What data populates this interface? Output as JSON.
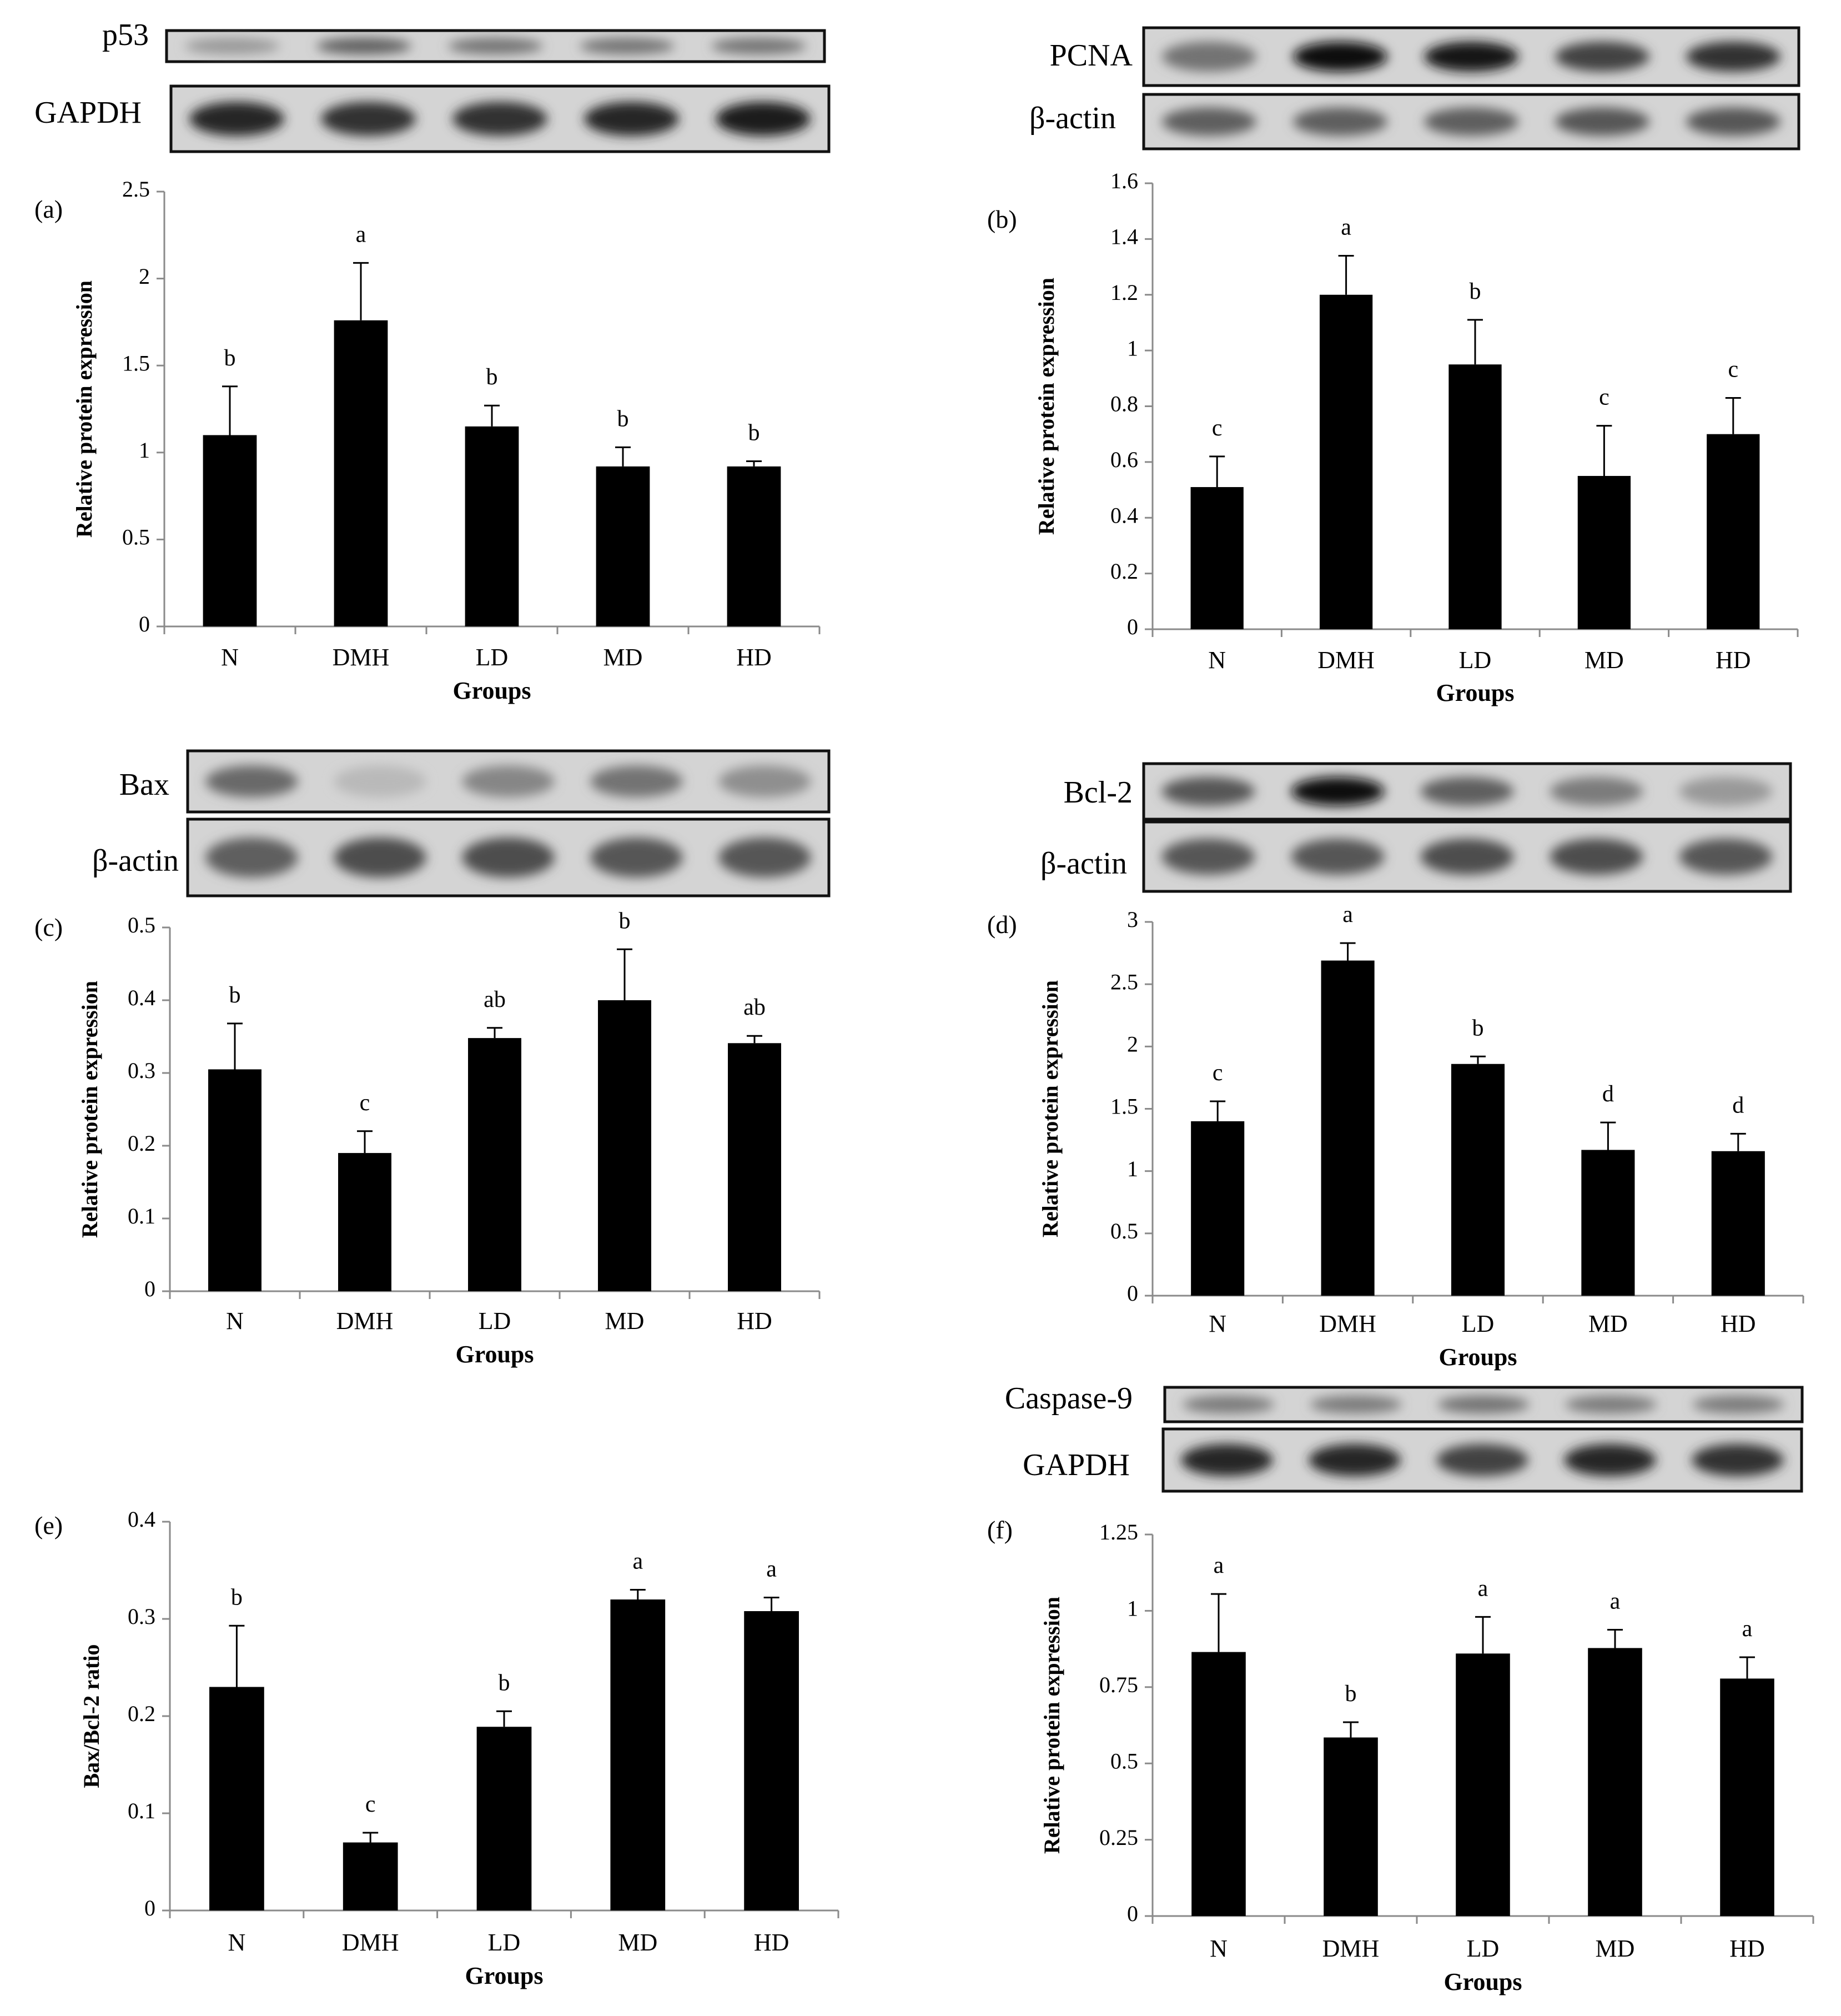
{
  "colors": {
    "bar": "#000000",
    "axis": "#8a8a8a",
    "blot_bg": "#d4d4d4"
  },
  "chart_data": [
    {
      "type": "bar",
      "panel": "(a)",
      "categories": [
        "N",
        "DMH",
        "LD",
        "MD",
        "HD"
      ],
      "values": [
        1.1,
        1.76,
        1.15,
        0.92,
        0.92
      ],
      "errors": [
        0.28,
        0.33,
        0.12,
        0.11,
        0.03
      ],
      "sig_letters": [
        "b",
        "a",
        "b",
        "b",
        "b"
      ],
      "ylim": [
        0,
        2.5
      ],
      "yticks": [
        "0",
        "0.5",
        "1",
        "1.5",
        "2",
        "2.5"
      ],
      "xlabel": "Groups",
      "ylabel": "Relative protein expression",
      "grid": false,
      "blots": [
        {
          "label": "p53",
          "bands": [
            0.25,
            0.55,
            0.45,
            0.45,
            0.45
          ]
        },
        {
          "label": "GAPDH",
          "bands": [
            0.85,
            0.8,
            0.8,
            0.85,
            0.9
          ]
        }
      ]
    },
    {
      "type": "bar",
      "panel": "(b)",
      "categories": [
        "N",
        "DMH",
        "LD",
        "MD",
        "HD"
      ],
      "values": [
        0.51,
        1.2,
        0.95,
        0.55,
        0.7
      ],
      "errors": [
        0.11,
        0.14,
        0.16,
        0.18,
        0.13
      ],
      "sig_letters": [
        "c",
        "a",
        "b",
        "c",
        "c"
      ],
      "ylim": [
        0,
        1.6
      ],
      "yticks": [
        "0",
        "0.2",
        "0.4",
        "0.6",
        "0.8",
        "1",
        "1.2",
        "1.4",
        "1.6"
      ],
      "xlabel": "Groups",
      "ylabel": "Relative protein expression",
      "grid": false,
      "blots": [
        {
          "label": "PCNA",
          "bands": [
            0.45,
            1.0,
            0.95,
            0.7,
            0.8
          ]
        },
        {
          "label": "β-actin",
          "bands": [
            0.55,
            0.55,
            0.55,
            0.6,
            0.6
          ]
        }
      ]
    },
    {
      "type": "bar",
      "panel": "(c)",
      "categories": [
        "N",
        "DMH",
        "LD",
        "MD",
        "HD"
      ],
      "values": [
        0.305,
        0.19,
        0.348,
        0.4,
        0.341
      ],
      "errors": [
        0.063,
        0.03,
        0.014,
        0.07,
        0.01
      ],
      "sig_letters": [
        "b",
        "c",
        "ab",
        "b",
        "ab"
      ],
      "ylim": [
        0,
        0.5
      ],
      "yticks": [
        "0",
        "0.1",
        "0.2",
        "0.3",
        "0.4",
        "0.5"
      ],
      "xlabel": "Groups",
      "ylabel": "Relative protein expression",
      "grid": false,
      "blots": [
        {
          "label": "Bax",
          "bands": [
            0.5,
            0.08,
            0.35,
            0.45,
            0.3
          ]
        },
        {
          "label": "β-actin",
          "bands": [
            0.55,
            0.65,
            0.65,
            0.6,
            0.6
          ]
        }
      ]
    },
    {
      "type": "bar",
      "panel": "(d)",
      "categories": [
        "N",
        "DMH",
        "LD",
        "MD",
        "HD"
      ],
      "values": [
        1.4,
        2.69,
        1.86,
        1.17,
        1.16
      ],
      "errors": [
        0.16,
        0.14,
        0.06,
        0.22,
        0.14
      ],
      "sig_letters": [
        "c",
        "a",
        "b",
        "d",
        "d"
      ],
      "ylim": [
        0,
        3
      ],
      "yticks": [
        "0",
        "0.5",
        "1",
        "1.5",
        "2",
        "2.5",
        "3"
      ],
      "xlabel": "Groups",
      "ylabel": "Relative protein expression",
      "grid": false,
      "blots": [
        {
          "label": "Bcl-2",
          "bands": [
            0.6,
            1.0,
            0.55,
            0.4,
            0.25
          ]
        },
        {
          "label": "β-actin",
          "bands": [
            0.6,
            0.6,
            0.65,
            0.65,
            0.6
          ]
        }
      ]
    },
    {
      "type": "bar",
      "panel": "(e)",
      "categories": [
        "N",
        "DMH",
        "LD",
        "MD",
        "HD"
      ],
      "values": [
        0.23,
        0.07,
        0.189,
        0.32,
        0.308
      ],
      "errors": [
        0.063,
        0.01,
        0.016,
        0.01,
        0.014
      ],
      "sig_letters": [
        "b",
        "c",
        "b",
        "a",
        "a"
      ],
      "ylim": [
        0,
        0.4
      ],
      "yticks": [
        "0",
        "0.1",
        "0.2",
        "0.3",
        "0.4"
      ],
      "xlabel": "Groups",
      "ylabel": "Bax/Bcl-2 ratio",
      "grid": false,
      "blots": []
    },
    {
      "type": "bar",
      "panel": "(f)",
      "categories": [
        "N",
        "DMH",
        "LD",
        "MD",
        "HD"
      ],
      "values": [
        0.865,
        0.585,
        0.86,
        0.878,
        0.778
      ],
      "errors": [
        0.19,
        0.05,
        0.12,
        0.06,
        0.07
      ],
      "sig_letters": [
        "a",
        "b",
        "a",
        "a",
        "a"
      ],
      "ylim": [
        0,
        1.25
      ],
      "yticks": [
        "0",
        "0.25",
        "0.5",
        "0.75",
        "1",
        "1.25"
      ],
      "xlabel": "Groups",
      "ylabel": "Relative protein expression",
      "grid": false,
      "blots": [
        {
          "label": "Caspase-9",
          "bands": [
            0.4,
            0.4,
            0.45,
            0.4,
            0.4
          ]
        },
        {
          "label": "GAPDH",
          "bands": [
            0.85,
            0.85,
            0.7,
            0.85,
            0.8
          ]
        }
      ]
    }
  ]
}
